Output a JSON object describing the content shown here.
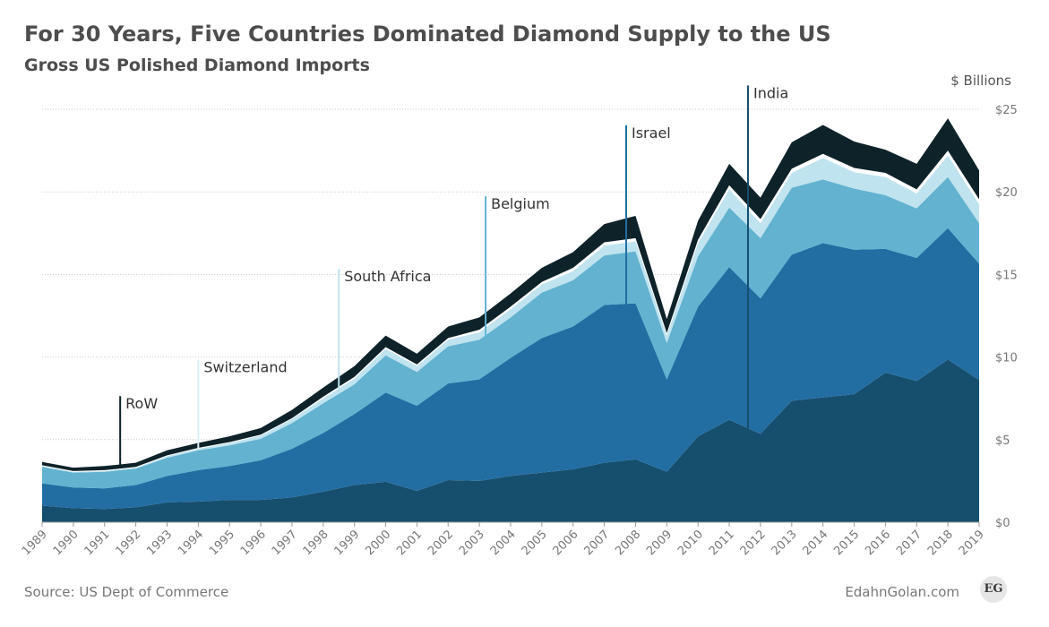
{
  "header": {
    "title": "For 30 Years, Five Countries Dominated Diamond Supply to the US",
    "subtitle": "Gross US Polished Diamond Imports"
  },
  "footer": {
    "source": "Source: US Dept of Commerce",
    "brand": "EdahnGolan.com",
    "logo_text": "EG"
  },
  "chart_data": {
    "type": "area",
    "stacked": true,
    "title": "For 30 Years, Five Countries Dominated Diamond Supply to the US",
    "subtitle": "Gross US Polished Diamond Imports",
    "ylabel": "$ Billions",
    "ylim": [
      0,
      25
    ],
    "yticks": [
      0,
      5,
      10,
      15,
      20,
      25
    ],
    "ytick_labels": [
      "$0",
      "$5",
      "$10",
      "$15",
      "$20",
      "$25"
    ],
    "y_axis_side": "right",
    "grid": true,
    "x": [
      1989,
      1990,
      1991,
      1992,
      1993,
      1994,
      1995,
      1996,
      1997,
      1998,
      1999,
      2000,
      2001,
      2002,
      2003,
      2004,
      2005,
      2006,
      2007,
      2008,
      2009,
      2010,
      2011,
      2012,
      2013,
      2014,
      2015,
      2016,
      2017,
      2018,
      2019
    ],
    "series": [
      {
        "name": "India",
        "color": "#164e6e",
        "values": [
          1.0,
          0.85,
          0.8,
          0.9,
          1.2,
          1.25,
          1.35,
          1.35,
          1.5,
          1.85,
          2.25,
          2.45,
          1.9,
          2.55,
          2.5,
          2.8,
          3.0,
          3.2,
          3.6,
          3.8,
          3.05,
          5.2,
          6.2,
          5.35,
          7.35,
          7.55,
          7.75,
          9.05,
          8.55,
          9.85,
          8.6
        ]
      },
      {
        "name": "Israel",
        "color": "#226ea3",
        "values": [
          1.35,
          1.25,
          1.25,
          1.35,
          1.6,
          1.9,
          2.05,
          2.4,
          2.95,
          3.55,
          4.3,
          5.4,
          5.15,
          5.85,
          6.15,
          7.15,
          8.15,
          8.65,
          9.55,
          9.45,
          5.6,
          7.85,
          9.25,
          8.2,
          8.85,
          9.35,
          8.75,
          7.5,
          7.45,
          7.95,
          7.05
        ]
      },
      {
        "name": "Belgium",
        "color": "#62b2d0",
        "values": [
          1.0,
          0.9,
          1.0,
          1.0,
          1.1,
          1.2,
          1.25,
          1.3,
          1.55,
          1.8,
          1.8,
          2.25,
          2.05,
          2.25,
          2.4,
          2.45,
          2.75,
          2.8,
          3.0,
          3.15,
          2.2,
          3.05,
          3.6,
          3.65,
          4.05,
          3.85,
          3.7,
          3.25,
          3.0,
          3.1,
          2.45
        ]
      },
      {
        "name": "South Africa",
        "color": "#bfe3ef",
        "values": [
          0.05,
          0.05,
          0.05,
          0.05,
          0.1,
          0.1,
          0.15,
          0.2,
          0.25,
          0.3,
          0.35,
          0.4,
          0.35,
          0.4,
          0.45,
          0.5,
          0.5,
          0.55,
          0.6,
          0.6,
          0.45,
          0.8,
          1.1,
          0.9,
          0.9,
          1.3,
          1.0,
          1.1,
          0.9,
          1.3,
          1.15
        ]
      },
      {
        "name": "Switzerland",
        "color": "#ffffff",
        "values": [
          0.05,
          0.05,
          0.05,
          0.05,
          0.05,
          0.05,
          0.05,
          0.05,
          0.05,
          0.1,
          0.1,
          0.1,
          0.1,
          0.1,
          0.15,
          0.15,
          0.15,
          0.2,
          0.2,
          0.2,
          0.15,
          0.2,
          0.25,
          0.25,
          0.25,
          0.25,
          0.25,
          0.25,
          0.25,
          0.3,
          0.3
        ]
      },
      {
        "name": "RoW",
        "color": "#0e2229",
        "values": [
          0.2,
          0.2,
          0.25,
          0.25,
          0.3,
          0.3,
          0.35,
          0.4,
          0.5,
          0.55,
          0.65,
          0.7,
          0.65,
          0.7,
          0.75,
          0.8,
          0.85,
          0.95,
          1.1,
          1.35,
          0.85,
          1.15,
          1.3,
          1.3,
          1.6,
          1.75,
          1.6,
          1.4,
          1.55,
          1.95,
          1.75
        ]
      }
    ],
    "annotations": [
      {
        "label": "RoW",
        "series": "RoW",
        "at_x": 1991.5,
        "label_at_y": 7.2
      },
      {
        "label": "Switzerland",
        "series": "Switzerland",
        "at_x": 1994,
        "label_at_y": 9.4
      },
      {
        "label": "South Africa",
        "series": "South Africa",
        "at_x": 1998.5,
        "label_at_y": 14.9
      },
      {
        "label": "Belgium",
        "series": "Belgium",
        "at_x": 2003.2,
        "label_at_y": 19.3
      },
      {
        "label": "Israel",
        "series": "Israel",
        "at_x": 2007.7,
        "label_at_y": 23.6
      },
      {
        "label": "India",
        "series": "India",
        "at_x": 2011.6,
        "label_at_y": 26.0
      }
    ]
  }
}
